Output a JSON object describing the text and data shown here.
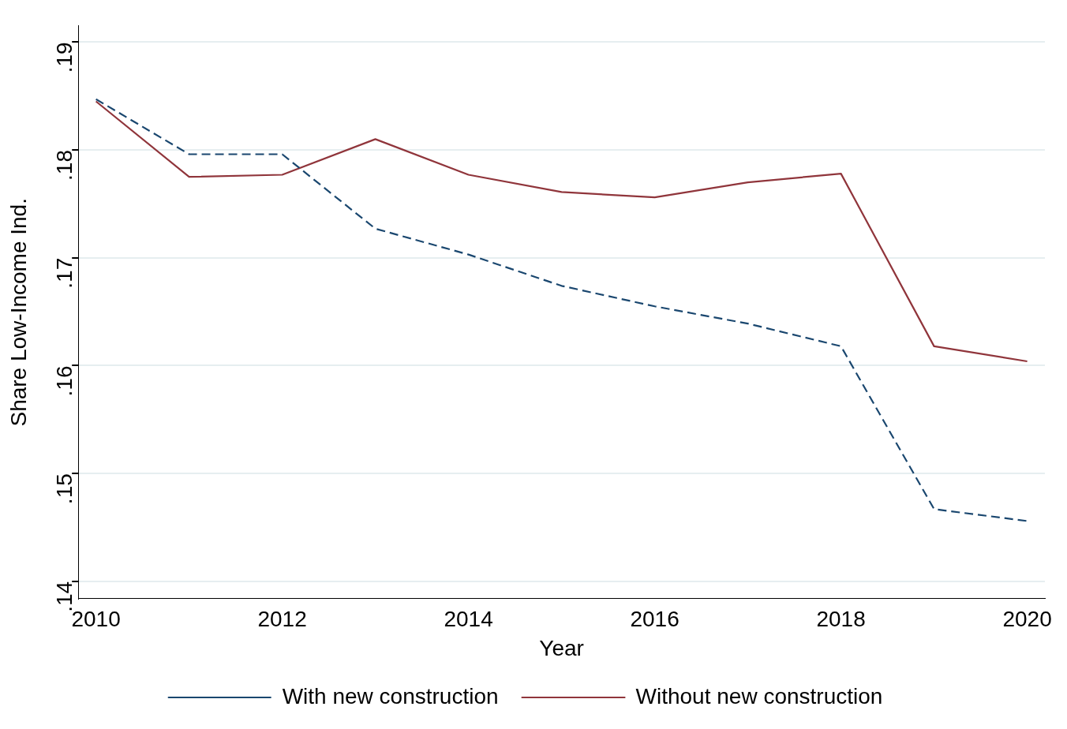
{
  "chart_data": {
    "type": "line",
    "xlabel": "Year",
    "ylabel": "Share Low-Income Ind.",
    "x": [
      2010,
      2011,
      2012,
      2013,
      2014,
      2015,
      2016,
      2017,
      2018,
      2019,
      2020
    ],
    "series": [
      {
        "name": "With new construction",
        "color": "#1a476f",
        "line_style": "dashed",
        "values": [
          0.1847,
          0.1796,
          0.1796,
          0.1727,
          0.1703,
          0.1674,
          0.1655,
          0.1639,
          0.1618,
          0.1467,
          0.1456
        ]
      },
      {
        "name": "Without new construction",
        "color": "#90353b",
        "line_style": "solid",
        "values": [
          0.1845,
          0.1775,
          0.1777,
          0.181,
          0.1777,
          0.1761,
          0.1756,
          0.177,
          0.1778,
          0.1618,
          0.1604
        ]
      }
    ],
    "xlim": [
      2009.81,
      2020.19
    ],
    "xticks": [
      2010,
      2012,
      2014,
      2016,
      2018,
      2020
    ],
    "ylim": [
      0.1384,
      0.1915
    ],
    "yticks": [
      {
        "value": 0.14,
        "label": ".14"
      },
      {
        "value": 0.15,
        "label": ".15"
      },
      {
        "value": 0.16,
        "label": ".16"
      },
      {
        "value": 0.17,
        "label": ".17"
      },
      {
        "value": 0.18,
        "label": ".18"
      },
      {
        "value": 0.19,
        "label": ".19"
      }
    ],
    "grid": "y",
    "legend": "bottom",
    "marker": "none"
  }
}
